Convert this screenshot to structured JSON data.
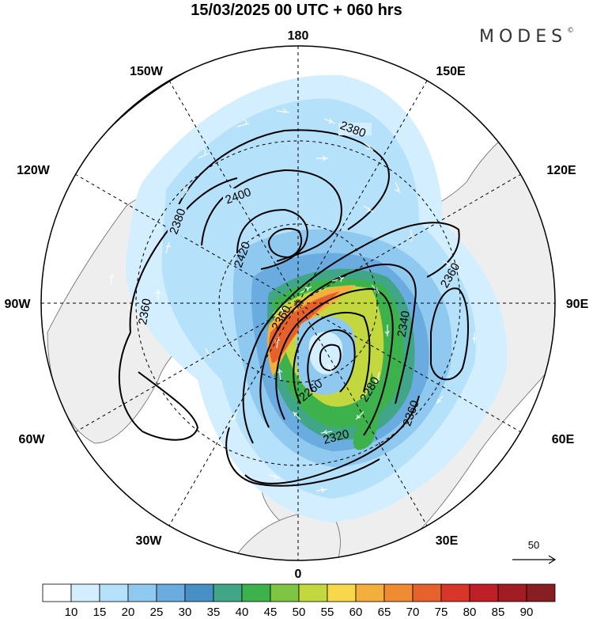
{
  "header": {
    "title": "15/03/2025  00 UTC  + 060 hrs",
    "brand": "MODES",
    "brand_mark": "©"
  },
  "map": {
    "projection": "north-polar-stereographic",
    "longitude_labels": {
      "top": "180",
      "top_left": "150W",
      "top_right": "150E",
      "upper_left": "120W",
      "upper_right": "120E",
      "left": "90W",
      "right": "90E",
      "lower_left": "60W",
      "lower_right": "60E",
      "bottom_left": "30W",
      "bottom_right": "30E",
      "bottom": "0"
    },
    "contour_labels": [
      "2380",
      "2380",
      "2400",
      "2420",
      "2360",
      "2360",
      "2340",
      "2260",
      "2280",
      "2320",
      "2360",
      "2360"
    ],
    "vector_reference": "50",
    "colors": {
      "land": "#eeeeee",
      "ocean": "#ffffff",
      "coast": "#555555",
      "contour": "#000000",
      "grid": "#000000",
      "arrow": "#ffffff"
    }
  },
  "colorbar": {
    "levels": [
      "10",
      "15",
      "20",
      "25",
      "30",
      "35",
      "40",
      "45",
      "50",
      "55",
      "60",
      "65",
      "70",
      "75",
      "80",
      "85",
      "90"
    ],
    "colors": [
      "#ffffff",
      "#d3efff",
      "#b6e1fa",
      "#90c9ef",
      "#6aacdf",
      "#4690c6",
      "#41a688",
      "#3db24c",
      "#7ec542",
      "#c3d83f",
      "#f8d84a",
      "#f4ae3d",
      "#ee8b33",
      "#e6622d",
      "#d9362a",
      "#bf1f27",
      "#a21c23",
      "#861e22"
    ]
  }
}
